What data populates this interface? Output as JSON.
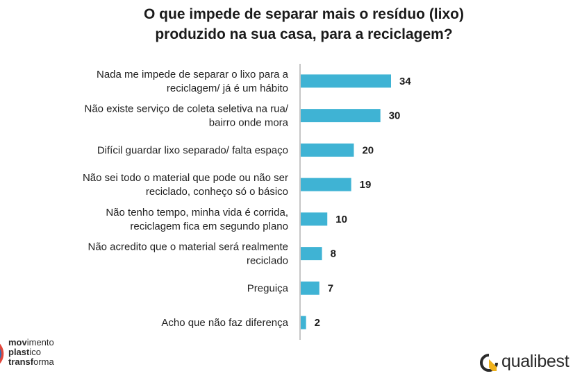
{
  "title_lines": [
    "O que impede de separar mais o resíduo (lixo)",
    "produzido na sua casa, para a reciclagem?"
  ],
  "chart_data": {
    "type": "bar",
    "orientation": "horizontal",
    "title": "O que impede de separar mais o resíduo (lixo) produzido na sua casa, para a reciclagem?",
    "categories": [
      [
        "Nada me impede de separar o lixo para a",
        "reciclagem/ já é um hábito"
      ],
      [
        "Não existe serviço de coleta seletiva na rua/",
        "bairro onde mora"
      ],
      [
        "Difícil guardar lixo separado/ falta espaço"
      ],
      [
        "Não sei todo o material que pode ou não ser",
        "reciclado, conheço só o básico"
      ],
      [
        "Não tenho tempo, minha vida é corrida,",
        "reciclagem fica em segundo plano"
      ],
      [
        "Não acredito que o material será realmente",
        "reciclado"
      ],
      [
        "Preguiça"
      ],
      [
        "Acho que não faz diferença"
      ]
    ],
    "values": [
      34,
      30,
      20,
      19,
      10,
      8,
      7,
      2
    ],
    "bar_color": "#3fb3d4",
    "axis_color": "#8c8c8c",
    "xlim": [
      0,
      34
    ],
    "grid": false,
    "legend": "none"
  },
  "logos": {
    "left": {
      "lines": [
        [
          "mov",
          "imento"
        ],
        [
          "plast",
          "ico"
        ],
        [
          "transf",
          "orma"
        ]
      ]
    },
    "right": {
      "wordmark": "qualibest",
      "mark_color": "#f0b21c"
    }
  }
}
